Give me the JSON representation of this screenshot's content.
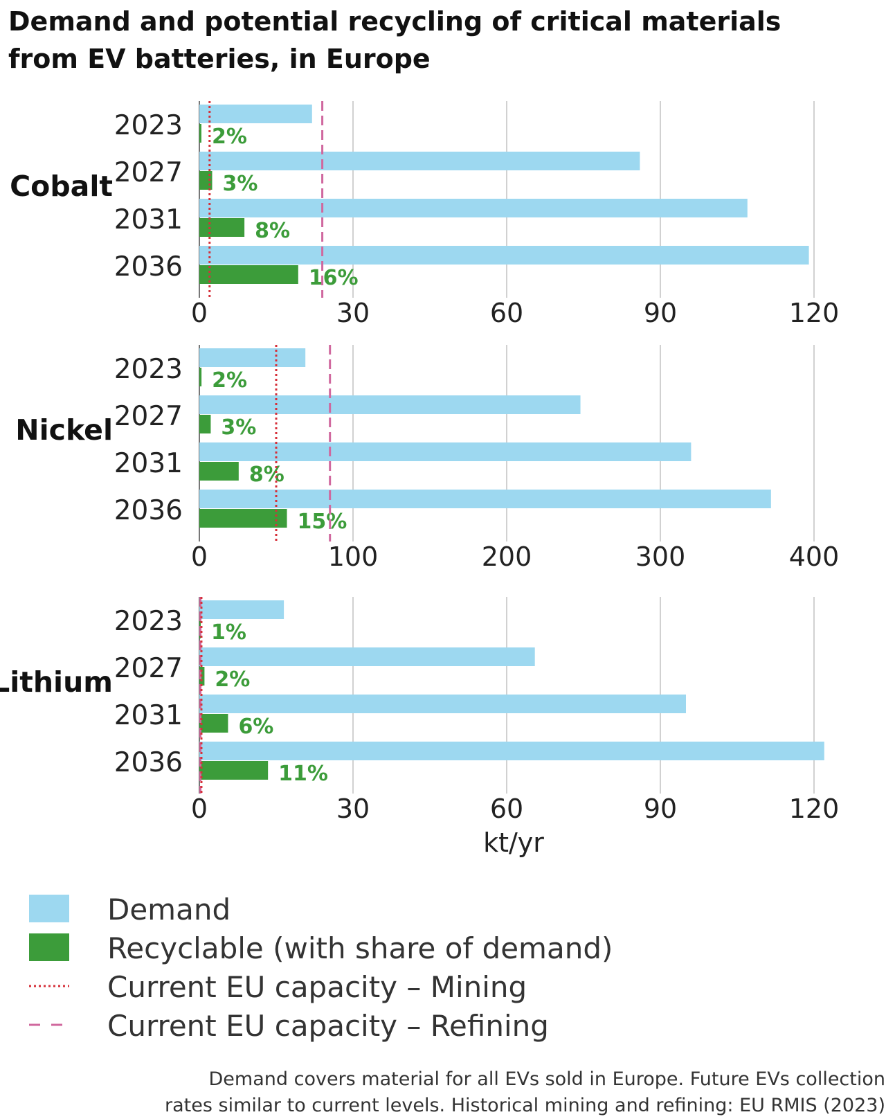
{
  "title_line1": "Demand and potential recycling of critical materials",
  "title_line2": "from EV batteries, in Europe",
  "colors": {
    "demand": "#9dd8f0",
    "recyclable": "#3c9c3a",
    "recyclable_label": "#3c9c3a",
    "mining_line": "#d6303a",
    "refining_line": "#d0689e",
    "grid": "#b8b8b8",
    "text": "#222222"
  },
  "chart_data": [
    {
      "type": "bar",
      "material": "Cobalt",
      "categories": [
        "2023",
        "2027",
        "2031",
        "2036"
      ],
      "series": [
        {
          "name": "Demand",
          "values": [
            22,
            86,
            107,
            119
          ]
        },
        {
          "name": "Recyclable (with share of demand)",
          "values": [
            0.4,
            2.5,
            8.8,
            19.3
          ]
        }
      ],
      "share_labels": [
        "2%",
        "3%",
        "8%",
        "16%"
      ],
      "xlim": [
        0,
        120
      ],
      "xticks": [
        "0",
        "30",
        "60",
        "90",
        "120"
      ],
      "mining_capacity": 2,
      "refining_capacity": 24
    },
    {
      "type": "bar",
      "material": "Nickel",
      "categories": [
        "2023",
        "2027",
        "2031",
        "2036"
      ],
      "series": [
        {
          "name": "Demand",
          "values": [
            69,
            248,
            320,
            372
          ]
        },
        {
          "name": "Recyclable (with share of demand)",
          "values": [
            1.4,
            7.4,
            25.6,
            57
          ]
        }
      ],
      "share_labels": [
        "2%",
        "3%",
        "8%",
        "15%"
      ],
      "xlim": [
        0,
        400
      ],
      "xticks": [
        "0",
        "100",
        "200",
        "300",
        "400"
      ],
      "mining_capacity": 50,
      "refining_capacity": 85
    },
    {
      "type": "bar",
      "material": "Lithium",
      "categories": [
        "2023",
        "2027",
        "2031",
        "2036"
      ],
      "series": [
        {
          "name": "Demand",
          "values": [
            16.5,
            65.5,
            95,
            122
          ]
        },
        {
          "name": "Recyclable (with share of demand)",
          "values": [
            0.2,
            1.0,
            5.6,
            13.4
          ]
        }
      ],
      "share_labels": [
        "1%",
        "2%",
        "6%",
        "11%"
      ],
      "xlim": [
        0,
        120
      ],
      "xticks": [
        "0",
        "30",
        "60",
        "90",
        "120"
      ],
      "mining_capacity": 0.4,
      "refining_capacity": 0.2,
      "xlabel": "kt/yr"
    }
  ],
  "legend": {
    "demand": "Demand",
    "recyclable": "Recyclable (with share of demand)",
    "mining": "Current EU capacity – Mining",
    "refining": "Current EU capacity – Refining"
  },
  "footnote_line1": "Demand covers material for all EVs sold in Europe. Future EVs collection",
  "footnote_line2": "rates similar to current levels. Historical mining and refining: EU RMIS (2023)"
}
